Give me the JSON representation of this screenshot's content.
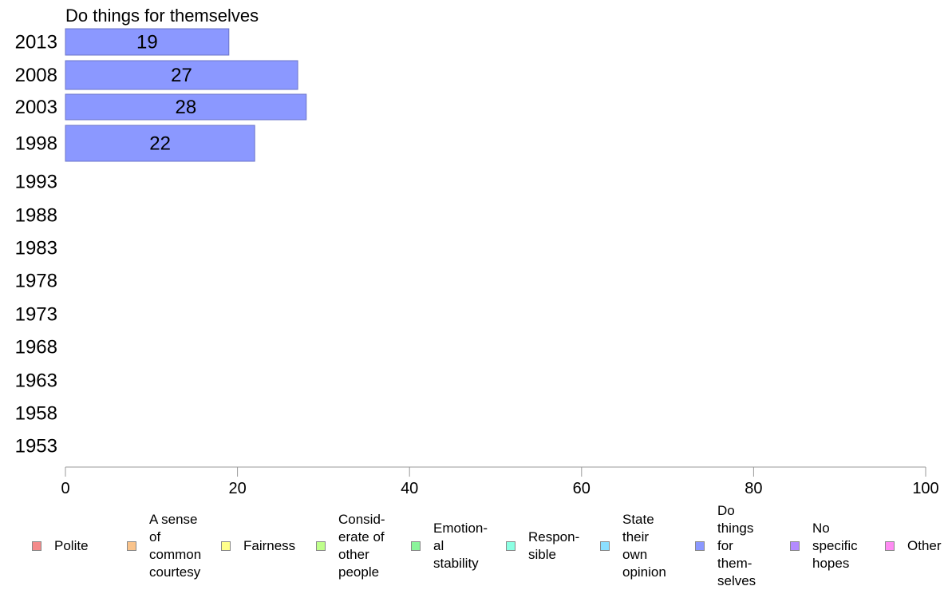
{
  "chart_data": {
    "type": "bar",
    "orientation": "horizontal",
    "title": "Do things for themselves",
    "categories": [
      "2013",
      "2008",
      "2003",
      "1998",
      "1993",
      "1988",
      "1983",
      "1978",
      "1973",
      "1968",
      "1963",
      "1958",
      "1953"
    ],
    "series": [
      {
        "name": "Do things for themselves",
        "color": "#8b98ff",
        "values": [
          19,
          27,
          28,
          22,
          null,
          null,
          null,
          null,
          null,
          null,
          null,
          null,
          null
        ]
      }
    ],
    "xlim": [
      0,
      100
    ],
    "xticks": [
      "0",
      "20",
      "40",
      "60",
      "80",
      "100"
    ],
    "grid": false,
    "legend": {
      "position": "bottom",
      "items": [
        {
          "label": "Polite",
          "color": "#f48b8b"
        },
        {
          "label": "A sense\nof\ncommon\ncourtesy",
          "color": "#f9c38b"
        },
        {
          "label": "Fairness",
          "color": "#ffff8b"
        },
        {
          "label": "Consid-\nerate of\nother\npeople",
          "color": "#bfff8b"
        },
        {
          "label": "Emotion-\nal\nstability",
          "color": "#8bf49b"
        },
        {
          "label": "Respon-\nsible",
          "color": "#8bffe3"
        },
        {
          "label": "State\ntheir\nown\nopinion",
          "color": "#8bdfff"
        },
        {
          "label": "Do\nthings\nfor\nthem-\nselves",
          "color": "#8b98ff"
        },
        {
          "label": "No\nspecific\nhopes",
          "color": "#b38bff"
        },
        {
          "label": "Other",
          "color": "#ff8bf3"
        }
      ]
    }
  }
}
